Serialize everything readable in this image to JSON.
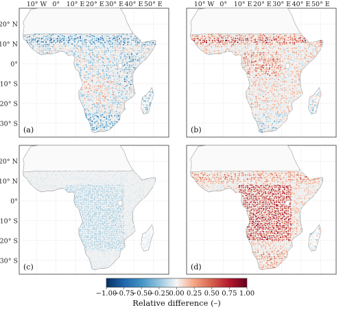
{
  "figure": {
    "lon_labels": [
      "10° W",
      "0°",
      "10° E",
      "20° E",
      "30° E",
      "40° E",
      "50° E"
    ],
    "lat_labels": [
      "20° N",
      "10° N",
      "0°",
      "10° S",
      "20° S",
      "30° S"
    ],
    "panels": [
      {
        "id": "a",
        "label": "(a)",
        "pattern": "mixed-blue",
        "show_lon": true,
        "show_lat": true
      },
      {
        "id": "b",
        "label": "(b)",
        "pattern": "mixed-red",
        "show_lon": true,
        "show_lat": false
      },
      {
        "id": "c",
        "label": "(c)",
        "pattern": "light-blue",
        "show_lon": false,
        "show_lat": true
      },
      {
        "id": "d",
        "label": "(d)",
        "pattern": "red",
        "show_lon": false,
        "show_lat": false
      }
    ]
  },
  "colorbar": {
    "title": "Relative difference (–)",
    "tick_labels": [
      "−1.00",
      "−0.75",
      "−0.50",
      "−0.25",
      "0.00",
      "0.25",
      "0.50",
      "0.75",
      "1.00"
    ],
    "colors": [
      "#053061",
      "#2166ac",
      "#4393c3",
      "#92c5de",
      "#f7f7f7",
      "#f4a582",
      "#d6604d",
      "#b2182b",
      "#67001f"
    ],
    "min": -1.0,
    "max": 1.0
  }
}
